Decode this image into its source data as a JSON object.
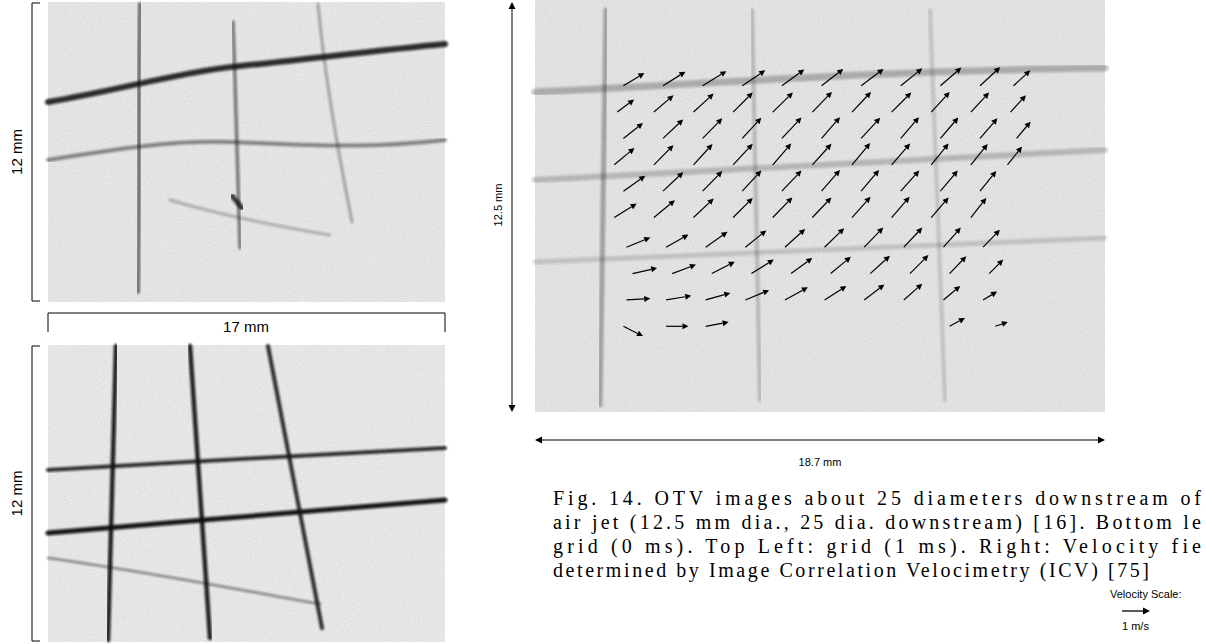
{
  "left_panels": {
    "top": {
      "height_label": "12 mm"
    },
    "bottom": {
      "height_label": "12 mm"
    },
    "width_label": "17 mm"
  },
  "chart_data": {
    "type": "quiver",
    "xlim": [
      0,
      18.7
    ],
    "ylim": [
      0,
      12.5
    ],
    "tick_labels": false,
    "x_label": "18.7 mm",
    "y_label": "12.5 mm",
    "scale": {
      "title": "Velocity Scale:",
      "value": 1,
      "label": "1 m/s"
    },
    "color": "#000000",
    "vectors": [
      {
        "y": 9.9,
        "x": [
          2.9,
          4.2,
          5.5,
          6.8,
          8.1,
          9.4,
          10.7,
          12.0,
          13.3,
          14.6,
          15.7
        ],
        "u": [
          0.75,
          0.8,
          0.85,
          0.82,
          0.8,
          0.78,
          0.8,
          0.77,
          0.75,
          0.72,
          0.6
        ],
        "v": [
          0.45,
          0.5,
          0.52,
          0.55,
          0.58,
          0.6,
          0.6,
          0.62,
          0.65,
          0.66,
          0.55
        ]
      },
      {
        "y": 9.1,
        "x": [
          2.7,
          3.9,
          5.2,
          6.5,
          7.8,
          9.1,
          10.4,
          11.7,
          13.0,
          14.3,
          15.6
        ],
        "u": [
          0.6,
          0.7,
          0.72,
          0.7,
          0.72,
          0.7,
          0.68,
          0.7,
          0.66,
          0.65,
          0.55
        ],
        "v": [
          0.45,
          0.6,
          0.66,
          0.7,
          0.7,
          0.72,
          0.72,
          0.7,
          0.72,
          0.7,
          0.6
        ]
      },
      {
        "y": 8.3,
        "x": [
          2.9,
          4.2,
          5.5,
          6.8,
          8.1,
          9.4,
          10.7,
          12.0,
          13.3,
          14.6,
          15.8
        ],
        "u": [
          0.7,
          0.72,
          0.7,
          0.68,
          0.7,
          0.66,
          0.68,
          0.65,
          0.64,
          0.62,
          0.5
        ],
        "v": [
          0.55,
          0.68,
          0.72,
          0.74,
          0.75,
          0.76,
          0.74,
          0.76,
          0.75,
          0.72,
          0.6
        ]
      },
      {
        "y": 7.5,
        "x": [
          2.6,
          3.9,
          5.2,
          6.5,
          7.8,
          9.1,
          10.4,
          11.7,
          13.0,
          14.3,
          15.5
        ],
        "u": [
          0.72,
          0.7,
          0.68,
          0.7,
          0.66,
          0.68,
          0.65,
          0.66,
          0.62,
          0.6,
          0.52
        ],
        "v": [
          0.6,
          0.7,
          0.74,
          0.75,
          0.76,
          0.75,
          0.78,
          0.76,
          0.76,
          0.74,
          0.65
        ]
      },
      {
        "y": 6.7,
        "x": [
          2.9,
          4.2,
          5.5,
          6.8,
          8.1,
          9.4,
          10.7,
          12.0,
          13.3,
          14.6
        ],
        "u": [
          0.78,
          0.72,
          0.7,
          0.68,
          0.7,
          0.66,
          0.64,
          0.66,
          0.62,
          0.58
        ],
        "v": [
          0.55,
          0.68,
          0.72,
          0.74,
          0.74,
          0.76,
          0.76,
          0.74,
          0.74,
          0.72
        ]
      },
      {
        "y": 5.9,
        "x": [
          2.6,
          3.9,
          5.2,
          6.5,
          7.8,
          9.1,
          10.4,
          11.7,
          13.0,
          14.3
        ],
        "u": [
          0.8,
          0.75,
          0.72,
          0.7,
          0.7,
          0.68,
          0.66,
          0.64,
          0.62,
          0.55
        ],
        "v": [
          0.5,
          0.62,
          0.68,
          0.7,
          0.72,
          0.72,
          0.74,
          0.74,
          0.72,
          0.7
        ]
      },
      {
        "y": 5.0,
        "x": [
          3.0,
          4.3,
          5.6,
          6.9,
          8.2,
          9.5,
          10.8,
          12.1,
          13.4,
          14.7
        ],
        "u": [
          0.85,
          0.8,
          0.78,
          0.75,
          0.72,
          0.7,
          0.68,
          0.66,
          0.62,
          0.6
        ],
        "v": [
          0.35,
          0.45,
          0.55,
          0.6,
          0.65,
          0.68,
          0.7,
          0.7,
          0.7,
          0.62
        ]
      },
      {
        "y": 4.2,
        "x": [
          3.2,
          4.5,
          5.8,
          7.1,
          8.4,
          9.7,
          11.0,
          12.3,
          13.6,
          14.9
        ],
        "u": [
          0.88,
          0.85,
          0.82,
          0.8,
          0.76,
          0.72,
          0.7,
          0.66,
          0.6,
          0.5
        ],
        "v": [
          0.2,
          0.32,
          0.42,
          0.5,
          0.56,
          0.6,
          0.64,
          0.66,
          0.62,
          0.5
        ]
      },
      {
        "y": 3.4,
        "x": [
          3.0,
          4.3,
          5.6,
          6.9,
          8.2,
          9.5,
          10.8,
          12.1,
          13.4,
          14.7
        ],
        "u": [
          0.85,
          0.9,
          0.88,
          0.85,
          0.82,
          0.78,
          0.72,
          0.66,
          0.6,
          0.5
        ],
        "v": [
          0.05,
          0.15,
          0.25,
          0.35,
          0.45,
          0.5,
          0.55,
          0.58,
          0.5,
          0.3
        ]
      },
      {
        "y": 2.6,
        "x": [
          2.9,
          4.3,
          5.6,
          13.6,
          15.1
        ],
        "u": [
          0.7,
          0.8,
          0.82,
          0.55,
          0.45
        ],
        "v": [
          -0.35,
          0.0,
          0.15,
          0.3,
          0.15
        ]
      }
    ]
  },
  "caption": [
    "Fig. 14. OTV images about 25 diameters downstream of",
    "air jet (12.5 mm dia., 25 dia. downstream) [16]. Bottom le",
    "grid (0 ms). Top Left: grid (1 ms).  Right: Velocity fie",
    "determined by Image Correlation Velocimetry (ICV) [75]"
  ]
}
